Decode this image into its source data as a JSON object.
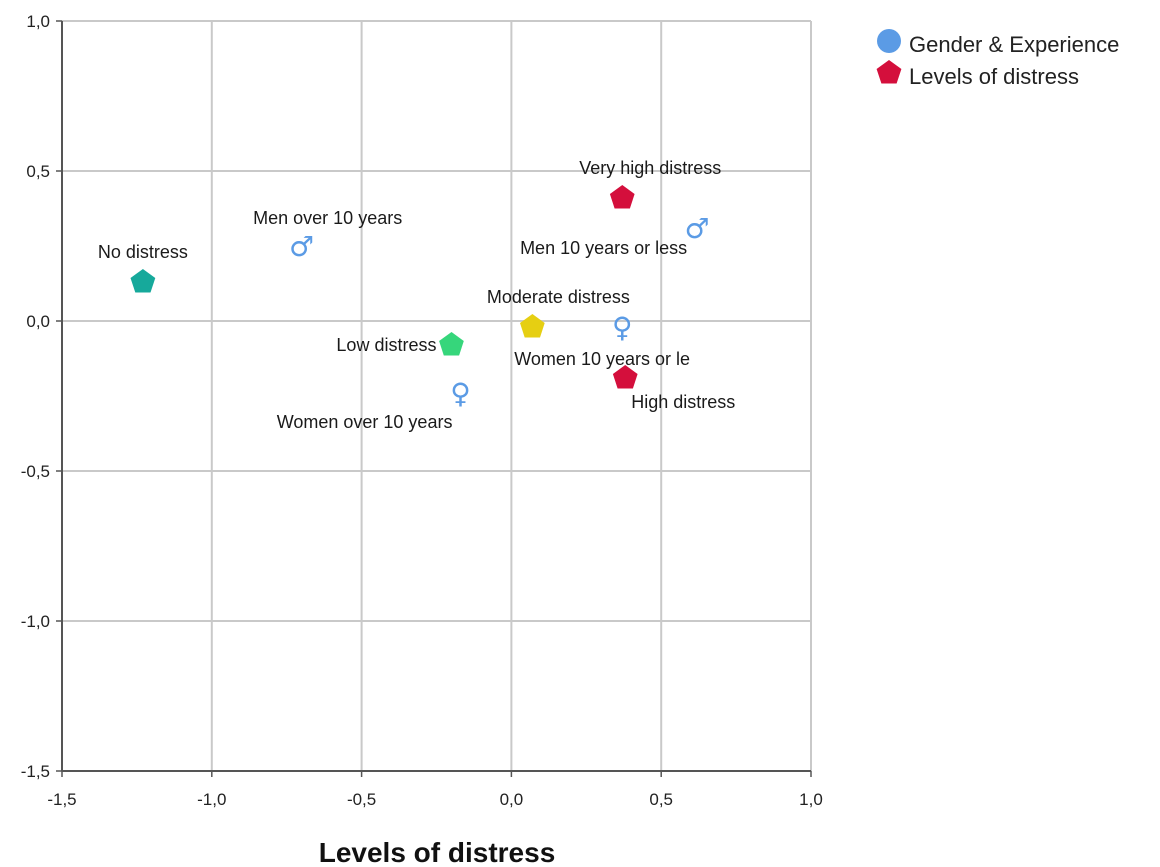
{
  "chart_data": {
    "type": "scatter",
    "title": "",
    "xlabel": "Levels of distress",
    "ylabel": "",
    "xlim": [
      -1.5,
      1.0
    ],
    "ylim": [
      -1.5,
      1.0
    ],
    "x_ticks": [
      "-1,5",
      "-1,0",
      "-0,5",
      "0,0",
      "0,5",
      "1,0"
    ],
    "y_ticks": [
      "1,0",
      "0,5",
      "0,0",
      "-0,5",
      "-1,0",
      "-1,5"
    ],
    "x_tick_values": [
      -1.5,
      -1.0,
      -0.5,
      0.0,
      0.5,
      1.0
    ],
    "y_tick_values": [
      1.0,
      0.5,
      0.0,
      -0.5,
      -1.0,
      -1.5
    ],
    "grid": true,
    "legend_position": "top-right",
    "legend": [
      {
        "name": "Gender & Experience",
        "color": "#5b9be5",
        "marker": "circle"
      },
      {
        "name": "Levels of distress",
        "color": "#d40f3c",
        "marker": "pentagon"
      }
    ],
    "series": [
      {
        "name": "Gender & Experience",
        "points": [
          {
            "label": "Men over 10 years",
            "x": -0.7,
            "y": 0.25,
            "symbol": "male",
            "color": "#5b9be5"
          },
          {
            "label": "Men 10 years or less",
            "x": 0.62,
            "y": 0.31,
            "symbol": "male",
            "color": "#5b9be5"
          },
          {
            "label": "Women 10 years or le",
            "x": 0.37,
            "y": -0.02,
            "symbol": "female",
            "color": "#5b9be5"
          },
          {
            "label": "Women over 10 years",
            "x": -0.17,
            "y": -0.24,
            "symbol": "female",
            "color": "#5b9be5"
          }
        ]
      },
      {
        "name": "Levels of distress",
        "points": [
          {
            "label": "No distress",
            "x": -1.23,
            "y": 0.13,
            "color": "#16a99b"
          },
          {
            "label": "Very high distress",
            "x": 0.37,
            "y": 0.41,
            "color": "#d40f3c"
          },
          {
            "label": "Moderate distress",
            "x": 0.07,
            "y": -0.02,
            "color": "#e6cf12"
          },
          {
            "label": "Low distress",
            "x": -0.2,
            "y": -0.08,
            "color": "#36d67b"
          },
          {
            "label": "High distress",
            "x": 0.38,
            "y": -0.19,
            "color": "#d40f3c"
          }
        ]
      }
    ]
  }
}
